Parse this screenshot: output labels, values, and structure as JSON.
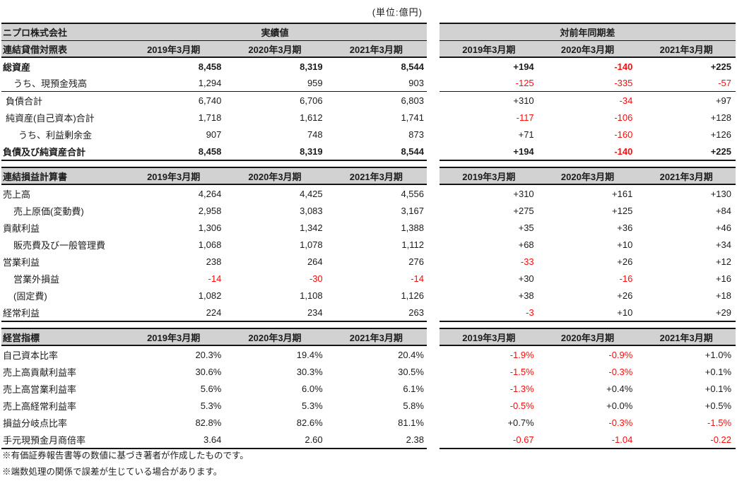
{
  "unit_label": "(単位:億円)",
  "columns": [
    "2019年3月期",
    "2020年3月期",
    "2021年3月期"
  ],
  "left_table": {
    "corner_label": "ニプロ株式会社",
    "group_header": "実績値"
  },
  "right_table": {
    "group_header": "対前年同期差"
  },
  "colors": {
    "negative_text": "#ff0000",
    "header_background": "#d2d2d2",
    "border": "#141414"
  },
  "sections": [
    {
      "title": "連結貸借対照表",
      "rows": [
        {
          "label": "総資産",
          "indent": 0,
          "bold": true,
          "actual": [
            "8,458",
            "8,319",
            "8,544"
          ],
          "diff": [
            "+194",
            "-140",
            "+225"
          ]
        },
        {
          "label": "うち、現預金残高",
          "indent": 2,
          "rule_below": true,
          "actual": [
            "1,294",
            "959",
            "903"
          ],
          "diff": [
            "-125",
            "-335",
            "-57"
          ]
        },
        {
          "label": "負債合計",
          "indent": 1,
          "actual": [
            "6,740",
            "6,706",
            "6,803"
          ],
          "diff": [
            "+310",
            "-34",
            "+97"
          ]
        },
        {
          "label": "純資産(自己資本)合計",
          "indent": 1,
          "actual": [
            "1,718",
            "1,612",
            "1,741"
          ],
          "diff": [
            "-117",
            "-106",
            "+128"
          ]
        },
        {
          "label": "うち、利益剰余金",
          "indent": 3,
          "actual": [
            "907",
            "748",
            "873"
          ],
          "diff": [
            "+71",
            "-160",
            "+126"
          ]
        },
        {
          "label": "負債及び純資産合計",
          "indent": 0,
          "bold": true,
          "actual": [
            "8,458",
            "8,319",
            "8,544"
          ],
          "diff": [
            "+194",
            "-140",
            "+225"
          ]
        }
      ]
    },
    {
      "title": "連結損益計算書",
      "rows": [
        {
          "label": "売上高",
          "indent": 0,
          "actual": [
            "4,264",
            "4,425",
            "4,556"
          ],
          "diff": [
            "+310",
            "+161",
            "+130"
          ]
        },
        {
          "label": "売上原価(変動費)",
          "indent": 2,
          "actual": [
            "2,958",
            "3,083",
            "3,167"
          ],
          "diff": [
            "+275",
            "+125",
            "+84"
          ]
        },
        {
          "label": "貢献利益",
          "indent": 0,
          "actual": [
            "1,306",
            "1,342",
            "1,388"
          ],
          "diff": [
            "+35",
            "+36",
            "+46"
          ]
        },
        {
          "label": "販売費及び一般管理費",
          "indent": 2,
          "actual": [
            "1,068",
            "1,078",
            "1,112"
          ],
          "diff": [
            "+68",
            "+10",
            "+34"
          ]
        },
        {
          "label": "営業利益",
          "indent": 0,
          "actual": [
            "238",
            "264",
            "276"
          ],
          "diff": [
            "-33",
            "+26",
            "+12"
          ]
        },
        {
          "label": "営業外損益",
          "indent": 2,
          "actual": [
            "-14",
            "-30",
            "-14"
          ],
          "diff": [
            "+30",
            "-16",
            "+16"
          ]
        },
        {
          "label": "(固定費)",
          "indent": 2,
          "actual": [
            "1,082",
            "1,108",
            "1,126"
          ],
          "diff": [
            "+38",
            "+26",
            "+18"
          ]
        },
        {
          "label": "経常利益",
          "indent": 0,
          "actual": [
            "224",
            "234",
            "263"
          ],
          "diff": [
            "-3",
            "+10",
            "+29"
          ]
        }
      ]
    },
    {
      "title": "経営指標",
      "rows": [
        {
          "label": "自己資本比率",
          "indent": 0,
          "actual": [
            "20.3%",
            "19.4%",
            "20.4%"
          ],
          "diff": [
            "-1.9%",
            "-0.9%",
            "+1.0%"
          ]
        },
        {
          "label": "売上高貢献利益率",
          "indent": 0,
          "actual": [
            "30.6%",
            "30.3%",
            "30.5%"
          ],
          "diff": [
            "-1.5%",
            "-0.3%",
            "+0.1%"
          ]
        },
        {
          "label": "売上高営業利益率",
          "indent": 0,
          "actual": [
            "5.6%",
            "6.0%",
            "6.1%"
          ],
          "diff": [
            "-1.3%",
            "+0.4%",
            "+0.1%"
          ]
        },
        {
          "label": "売上高経常利益率",
          "indent": 0,
          "actual": [
            "5.3%",
            "5.3%",
            "5.8%"
          ],
          "diff": [
            "-0.5%",
            "+0.0%",
            "+0.5%"
          ]
        },
        {
          "label": "損益分岐点比率",
          "indent": 0,
          "actual": [
            "82.8%",
            "82.6%",
            "81.1%"
          ],
          "diff": [
            "+0.7%",
            "-0.3%",
            "-1.5%"
          ]
        },
        {
          "label": "手元現預金月商倍率",
          "indent": 0,
          "actual": [
            "3.64",
            "2.60",
            "2.38"
          ],
          "diff": [
            "-0.67",
            "-1.04",
            "-0.22"
          ]
        }
      ]
    }
  ],
  "notes": [
    "※有価証券報告書等の数値に基づき著者が作成したものです。",
    "※端数処理の関係で誤差が生じている場合があります。"
  ]
}
